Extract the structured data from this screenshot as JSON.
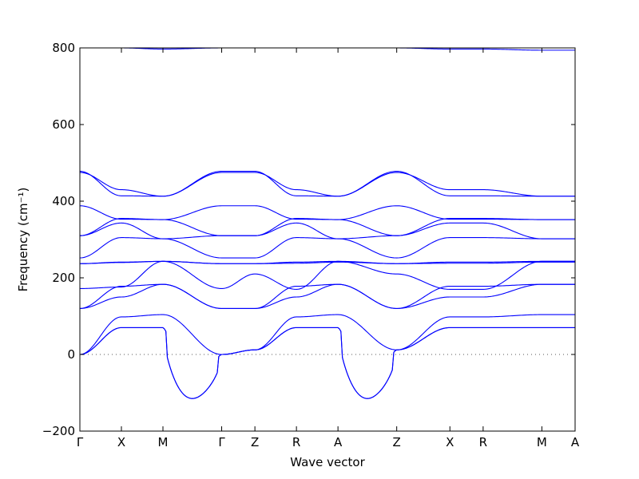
{
  "chart_data": {
    "type": "line",
    "title": "",
    "xlabel": "Wave vector",
    "ylabel": "Frequency (cm⁻¹)",
    "ylim": [
      -200,
      800
    ],
    "yticks": [
      -200,
      0,
      200,
      400,
      600,
      800
    ],
    "grid": false,
    "legend": null,
    "colors": {
      "bands": "#0000ff",
      "zero_line": "#555555"
    },
    "zero_reference_line": {
      "y": 0,
      "style": "dotted"
    },
    "kpoints": [
      {
        "label": "Γ",
        "x": 0
      },
      {
        "label": "X",
        "x": 0.5
      },
      {
        "label": "M",
        "x": 1.0
      },
      {
        "label": "Γ",
        "x": 1.7071
      },
      {
        "label": "Z",
        "x": 2.1071
      },
      {
        "label": "R",
        "x": 2.6071
      },
      {
        "label": "A",
        "x": 3.1071
      },
      {
        "label": "Z",
        "x": 3.8142
      },
      {
        "label": "X",
        "x": 4.4545
      },
      {
        "label": "R",
        "x": 4.8545
      },
      {
        "label": "M",
        "x": 5.5616
      },
      {
        "label": "A",
        "x": 5.9616
      }
    ],
    "segments": [
      {
        "from": "Γ",
        "to": "X"
      },
      {
        "from": "X",
        "to": "M"
      },
      {
        "from": "M",
        "to": "Γ"
      },
      {
        "from": "Γ",
        "to": "Z"
      },
      {
        "from": "Z",
        "to": "R"
      },
      {
        "from": "R",
        "to": "A"
      },
      {
        "from": "A",
        "to": "Z"
      },
      {
        "from": "Z",
        "to": "X"
      },
      {
        "from": "X",
        "to": "R"
      },
      {
        "from": "R",
        "to": "M"
      },
      {
        "from": "M",
        "to": "A"
      }
    ],
    "series": [
      {
        "values": [
          0,
          70,
          70,
          0,
          12,
          70,
          70,
          12,
          70,
          70,
          70,
          70
        ]
      },
      {
        "values": [
          0,
          70,
          70,
          0,
          12,
          70,
          70,
          12,
          70,
          70,
          70,
          70
        ]
      },
      {
        "values": [
          0,
          98,
          104,
          0,
          12,
          98,
          104,
          12,
          98,
          98,
          104,
          104
        ]
      },
      {
        "values": [
          120,
          150,
          183,
          120,
          120,
          150,
          183,
          120,
          150,
          150,
          183,
          183
        ]
      },
      {
        "values": [
          120,
          178,
          183,
          120,
          120,
          178,
          183,
          120,
          178,
          178,
          183,
          183
        ]
      },
      {
        "values": [
          172,
          176,
          243,
          172,
          210,
          170,
          243,
          210,
          170,
          170,
          243,
          243
        ]
      },
      {
        "values": [
          237,
          241,
          243,
          237,
          237,
          241,
          243,
          237,
          241,
          241,
          243,
          243
        ]
      },
      {
        "values": [
          237,
          240,
          243,
          237,
          237,
          238,
          241,
          237,
          238,
          238,
          241,
          241
        ]
      },
      {
        "values": [
          252,
          305,
          302,
          252,
          252,
          305,
          302,
          252,
          305,
          305,
          302,
          302
        ]
      },
      {
        "values": [
          310,
          343,
          302,
          310,
          310,
          343,
          302,
          310,
          343,
          343,
          302,
          302
        ]
      },
      {
        "values": [
          310,
          355,
          352,
          310,
          310,
          355,
          352,
          310,
          355,
          355,
          352,
          352
        ]
      },
      {
        "values": [
          388,
          353,
          352,
          388,
          388,
          353,
          352,
          388,
          353,
          353,
          352,
          352
        ]
      },
      {
        "values": [
          475,
          430,
          413,
          475,
          475,
          430,
          413,
          475,
          430,
          430,
          413,
          413
        ]
      },
      {
        "values": [
          478,
          414,
          413,
          478,
          478,
          414,
          413,
          478,
          414,
          414,
          413,
          413
        ]
      },
      {
        "values": [
          800,
          800,
          797,
          800,
          800,
          800,
          800,
          800,
          797,
          797,
          794,
          794
        ]
      }
    ],
    "imaginary_dips": [
      {
        "segment": 2,
        "band": 0,
        "min": -115
      },
      {
        "segment": 2,
        "band": 1,
        "min": -115
      },
      {
        "segment": 6,
        "band": 0,
        "min": -115
      },
      {
        "segment": 6,
        "band": 1,
        "min": -115
      }
    ]
  }
}
